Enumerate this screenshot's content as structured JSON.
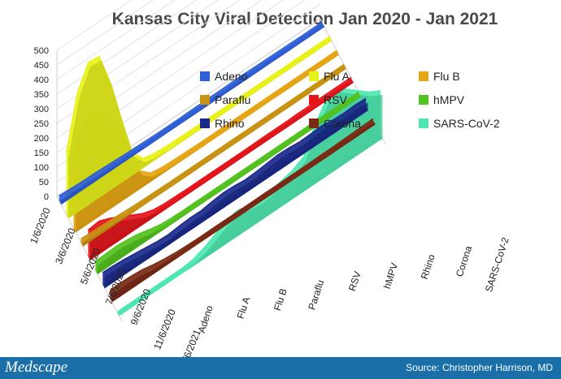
{
  "chart_data": {
    "type": "area",
    "title": "Kansas City Viral Detection Jan 2020 - Jan 2021",
    "y_ticks": [
      "0",
      "50",
      "100",
      "150",
      "200",
      "250",
      "300",
      "350",
      "400",
      "450",
      "500"
    ],
    "ylim": [
      0,
      500
    ],
    "date_labels": [
      "1/6/2020",
      "3/6/2020",
      "5/6/2020",
      "7/6/2020",
      "9/6/2020",
      "11/6/2020",
      "1/6/2021"
    ],
    "legend_position": "top-center",
    "grid": true,
    "series": [
      {
        "name": "Adeno",
        "label": "Adeno",
        "color": "#2e5fd6",
        "values": [
          16,
          14,
          12,
          11,
          10,
          8,
          6,
          5,
          4,
          3,
          3,
          3,
          4,
          4,
          5,
          5,
          6,
          6,
          5,
          5,
          4,
          4,
          3,
          3,
          3
        ]
      },
      {
        "name": "Flu A",
        "label": "Flu A",
        "color": "#e8f21a",
        "values": [
          210,
          390,
          470,
          465,
          350,
          200,
          60,
          15,
          6,
          3,
          2,
          2,
          1,
          1,
          1,
          1,
          1,
          1,
          1,
          1,
          1,
          1,
          1,
          1,
          1
        ]
      },
      {
        "name": "Flu B",
        "label": "Flu B",
        "color": "#e6a512",
        "values": [
          250,
          330,
          340,
          320,
          260,
          150,
          45,
          12,
          5,
          3,
          2,
          1,
          1,
          1,
          1,
          1,
          1,
          1,
          1,
          1,
          1,
          1,
          1,
          1,
          1
        ]
      },
      {
        "name": "Paraflu",
        "label": "Paraflu",
        "color": "#c99312",
        "values": [
          12,
          10,
          8,
          7,
          5,
          3,
          2,
          2,
          1,
          1,
          1,
          1,
          1,
          1,
          1,
          1,
          1,
          1,
          1,
          1,
          1,
          1,
          1,
          1,
          1
        ]
      },
      {
        "name": "RSV",
        "label": "RSV",
        "color": "#e3141a",
        "values": [
          90,
          95,
          80,
          60,
          40,
          20,
          8,
          4,
          3,
          2,
          2,
          2,
          2,
          2,
          2,
          2,
          3,
          3,
          3,
          4,
          4,
          5,
          5,
          5,
          5
        ]
      },
      {
        "name": "hMPV",
        "label": "hMPV",
        "color": "#52c21e",
        "values": [
          30,
          32,
          34,
          30,
          24,
          14,
          6,
          3,
          2,
          2,
          2,
          2,
          2,
          2,
          2,
          2,
          2,
          2,
          2,
          2,
          2,
          2,
          2,
          2,
          2
        ]
      },
      {
        "name": "Rhino",
        "label": "Rhino",
        "color": "#1a2a8c",
        "values": [
          40,
          38,
          35,
          30,
          25,
          20,
          18,
          22,
          25,
          24,
          30,
          34,
          32,
          28,
          30,
          34,
          38,
          36,
          32,
          34,
          36,
          30,
          28,
          30,
          28
        ]
      },
      {
        "name": "Corona",
        "label": "Corona",
        "color": "#7a2a14",
        "values": [
          26,
          28,
          26,
          22,
          14,
          8,
          4,
          2,
          1,
          1,
          1,
          1,
          1,
          1,
          1,
          1,
          1,
          1,
          1,
          2,
          2,
          3,
          4,
          5,
          6
        ]
      },
      {
        "name": "SARS-CoV-2",
        "label": "SARS-CoV-2",
        "color": "#4de8b0",
        "values": [
          0,
          0,
          0,
          0,
          0,
          0,
          0,
          5,
          20,
          40,
          60,
          70,
          60,
          55,
          60,
          70,
          80,
          100,
          180,
          240,
          260,
          230,
          200,
          170,
          150
        ]
      }
    ]
  },
  "footer": {
    "brand": "Medscape",
    "source": "Source: Christopher Harrison, MD"
  }
}
